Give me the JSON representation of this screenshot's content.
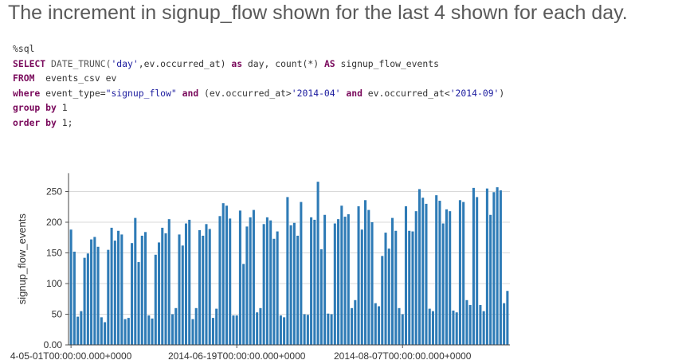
{
  "page_title": "The increment in signup_flow shown for the last 4 shown for each day.",
  "code": {
    "magic": "%sql",
    "line1": {
      "kw_select": "SELECT",
      "fn": "DATE_TRUNC(",
      "arg": "'day'",
      "rest": ",ev.occurred_at) ",
      "kw_as1": "as",
      "mid": " day, count(*) ",
      "kw_as2": "AS",
      "alias": " signup_flow_events"
    },
    "line2": {
      "kw_from": "FROM",
      "rest": "  events_csv ev"
    },
    "line3": {
      "kw_where": "where",
      "p1": " event_type=",
      "s1": "\"signup_flow\"",
      "sp1": " ",
      "kw_and1": "and",
      "p2": " (ev.occurred_at>",
      "s2": "'2014-04'",
      "sp2": " ",
      "kw_and2": "and",
      "p3": " ev.occurred_at<",
      "s3": "'2014-09'",
      "p4": ")"
    },
    "line4": {
      "kw_group": "group",
      "sp": " ",
      "kw_by": "by",
      "num": " 1"
    },
    "line5": {
      "kw_order": "order",
      "sp": " ",
      "kw_by": "by",
      "num": " 1",
      "end": ";"
    }
  },
  "chart_data": {
    "type": "bar",
    "title": "",
    "xlabel": "",
    "ylabel": "signup_flow_events",
    "ylim": [
      0,
      280
    ],
    "yticks": [
      0,
      50,
      100,
      150,
      200,
      250
    ],
    "ytick_labels": [
      "0.00",
      "50",
      "100",
      "150",
      "200",
      "250"
    ],
    "xtick_labels": [
      "4-05-01T00:00:00.000+0000",
      "2014-06-19T00:00:00.000+0000",
      "2014-08-07T00:00:00.000+0000"
    ],
    "xtick_index": [
      0,
      49,
      98
    ],
    "bar_color": "#2e7bb6",
    "grid": true,
    "values": [
      188,
      152,
      46,
      55,
      142,
      149,
      172,
      176,
      160,
      45,
      37,
      155,
      191,
      170,
      186,
      180,
      42,
      44,
      166,
      207,
      135,
      178,
      184,
      48,
      43,
      147,
      167,
      191,
      182,
      205,
      50,
      60,
      180,
      162,
      198,
      204,
      42,
      60,
      187,
      178,
      197,
      189,
      44,
      59,
      210,
      231,
      227,
      206,
      48,
      48,
      219,
      132,
      193,
      208,
      220,
      53,
      60,
      197,
      208,
      203,
      173,
      185,
      48,
      45,
      241,
      195,
      199,
      178,
      233,
      50,
      49,
      208,
      204,
      266,
      156,
      212,
      51,
      50,
      198,
      205,
      227,
      209,
      213,
      60,
      73,
      226,
      188,
      236,
      220,
      200,
      68,
      63,
      145,
      183,
      157,
      207,
      186,
      60,
      50,
      226,
      186,
      185,
      218,
      254,
      240,
      230,
      59,
      55,
      244,
      235,
      198,
      221,
      218,
      56,
      53,
      236,
      233,
      73,
      65,
      256,
      241,
      65,
      55,
      255,
      212,
      249,
      257,
      252,
      68,
      88
    ]
  }
}
